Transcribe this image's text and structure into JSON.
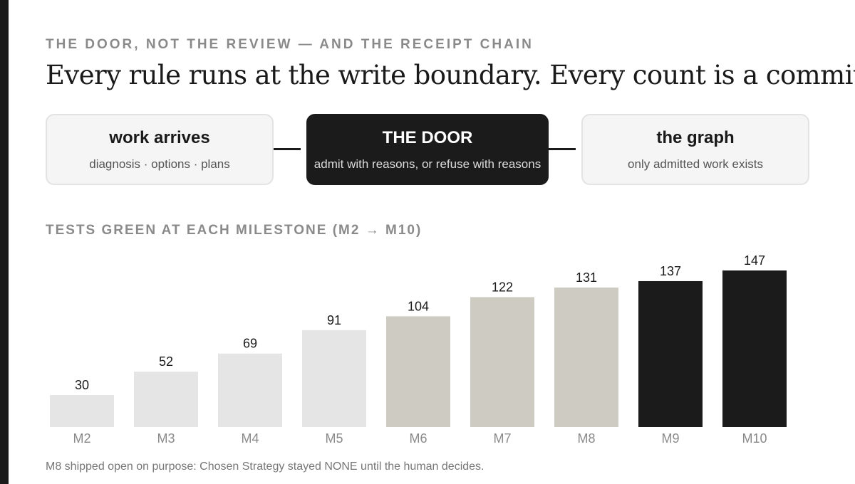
{
  "eyebrow": "THE DOOR, NOT THE REVIEW — AND THE RECEIPT CHAIN",
  "headline": "Every rule runs at the write boundary. Every count is a commit.",
  "flow": {
    "left": {
      "title": "work arrives",
      "subtitle": "diagnosis · options · plans"
    },
    "center": {
      "title": "THE DOOR",
      "subtitle": "admit with reasons, or refuse with reasons"
    },
    "right": {
      "title": "the graph",
      "subtitle": "only admitted work exists"
    }
  },
  "chart_data": {
    "type": "bar",
    "title": "TESTS GREEN AT EACH MILESTONE (M2 → M10)",
    "categories": [
      "M2",
      "M3",
      "M4",
      "M5",
      "M6",
      "M7",
      "M8",
      "M9",
      "M10"
    ],
    "values": [
      30,
      52,
      69,
      91,
      104,
      122,
      131,
      137,
      147
    ],
    "colors": [
      "#e5e5e5",
      "#e5e5e5",
      "#e5e5e5",
      "#e5e5e5",
      "#ceccc2",
      "#ceccc2",
      "#ceccc2",
      "#1b1b1b",
      "#1b1b1b"
    ],
    "ylim": [
      0,
      147
    ],
    "xlabel": "",
    "ylabel": "",
    "grid": false
  },
  "footnote": "M8 shipped open on purpose: Chosen Strategy stayed NONE until the human decides."
}
